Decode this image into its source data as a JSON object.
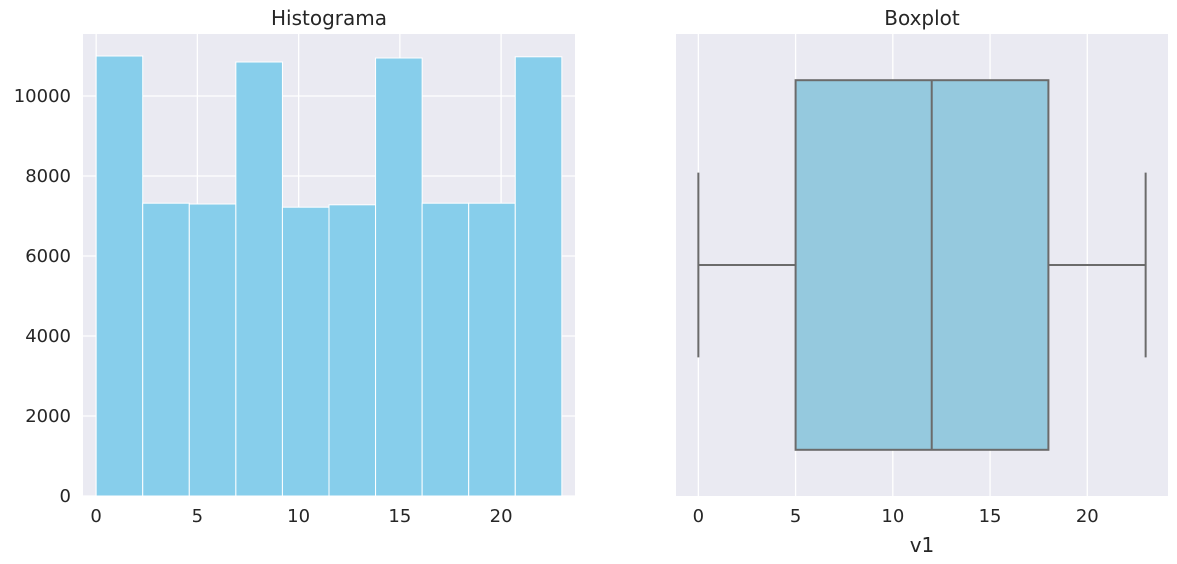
{
  "chart_data": [
    {
      "type": "bar",
      "title": "Histograma",
      "xlabel": "",
      "ylabel": "",
      "bin_edges": [
        0,
        2.3,
        4.6,
        6.9,
        9.2,
        11.5,
        13.8,
        16.1,
        18.4,
        20.7,
        23
      ],
      "values": [
        11000,
        7320,
        7300,
        10850,
        7220,
        7280,
        10950,
        7320,
        7320,
        10980
      ],
      "xlim": [
        -0.65,
        23.65
      ],
      "ylim": [
        0,
        11550
      ],
      "xticks": [
        0,
        5,
        10,
        15,
        20
      ],
      "xtick_labels": [
        "0",
        "5",
        "10",
        "15",
        "20"
      ],
      "yticks": [
        0,
        2000,
        4000,
        6000,
        8000,
        10000
      ],
      "ytick_labels": [
        "0",
        "2000",
        "4000",
        "6000",
        "8000",
        "10000"
      ],
      "grid": true,
      "color": "#87ceeb"
    },
    {
      "type": "boxplot",
      "title": "Boxplot",
      "xlabel": "v1",
      "ylabel": "",
      "whisker_low": 0,
      "q1": 5,
      "median": 12,
      "q3": 18,
      "whisker_high": 23,
      "xlim": [
        -1.15,
        24.15
      ],
      "xticks": [
        0,
        5,
        10,
        15,
        20
      ],
      "xtick_labels": [
        "0",
        "5",
        "10",
        "15",
        "20"
      ],
      "grid": true,
      "box_color": "#95c9de",
      "line_color": "#6b6b6b"
    }
  ]
}
